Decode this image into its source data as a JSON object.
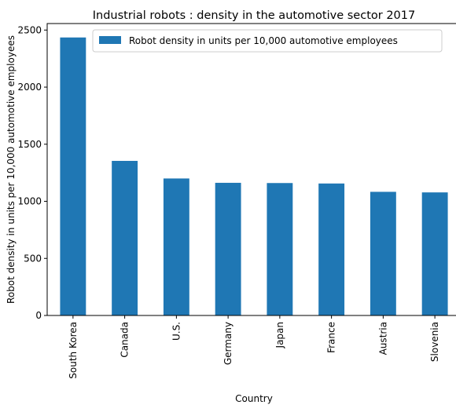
{
  "chart_data": {
    "type": "bar",
    "title": "Industrial robots : density in the automotive sector 2017",
    "xlabel": "Country",
    "ylabel": "Robot density in units per 10,000 automotive employees",
    "categories": [
      "South Korea",
      "Canada",
      "U.S.",
      "Germany",
      "Japan",
      "France",
      "Austria",
      "Slovenia"
    ],
    "series": [
      {
        "name": "Robot density in units per 10,000 automotive employees",
        "values": [
          2435,
          1354,
          1200,
          1162,
          1160,
          1156,
          1083,
          1078
        ],
        "color": "#1f77b4"
      }
    ],
    "ylim": [
      0,
      2557
    ],
    "yticks": [
      0,
      500,
      1000,
      1500,
      2000,
      2500
    ],
    "grid": false,
    "legend_position": "top-right"
  }
}
